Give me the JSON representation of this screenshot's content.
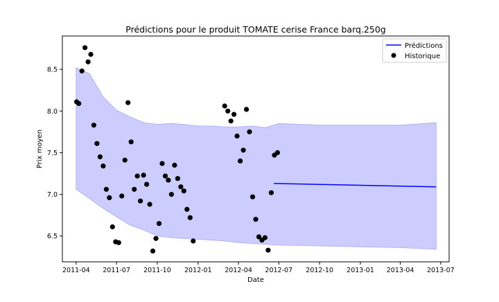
{
  "chart_data": {
    "type": "line",
    "title": "Prédictions pour le produit TOMATE cerise France barq.250g",
    "xlabel": "Date",
    "ylabel": "Prix moyen",
    "xlim": [
      "2011-03-01",
      "2013-07-20"
    ],
    "ylim": [
      6.19,
      8.9
    ],
    "x_ticks": [
      "2011-04",
      "2011-07",
      "2011-10",
      "2012-01",
      "2012-04",
      "2012-07",
      "2012-10",
      "2013-01",
      "2013-04",
      "2013-07"
    ],
    "y_ticks": [
      6.5,
      7.0,
      7.5,
      8.0,
      8.5
    ],
    "legend": {
      "position": "top-right",
      "entries": [
        "Prédictions",
        "Historique"
      ]
    },
    "colors": {
      "prediction": "#0000ff",
      "band_fill": "#ccccff",
      "band_edge": "#aaaaee",
      "history": "#000000"
    },
    "series": [
      {
        "name": "Prédictions",
        "kind": "line",
        "x": [
          "2012-06-20",
          "2013-06-21"
        ],
        "y": [
          7.13,
          7.09
        ]
      },
      {
        "name": "Historique",
        "kind": "scatter",
        "points": [
          [
            "2011-04-02",
            8.11
          ],
          [
            "2011-04-07",
            8.09
          ],
          [
            "2011-04-14",
            8.48
          ],
          [
            "2011-04-21",
            8.76
          ],
          [
            "2011-04-28",
            8.59
          ],
          [
            "2011-05-04",
            8.68
          ],
          [
            "2011-05-11",
            7.83
          ],
          [
            "2011-05-18",
            7.61
          ],
          [
            "2011-05-25",
            7.45
          ],
          [
            "2011-06-01",
            7.34
          ],
          [
            "2011-06-08",
            7.06
          ],
          [
            "2011-06-15",
            6.96
          ],
          [
            "2011-06-22",
            6.61
          ],
          [
            "2011-06-29",
            6.43
          ],
          [
            "2011-07-06",
            6.42
          ],
          [
            "2011-07-13",
            6.98
          ],
          [
            "2011-07-20",
            7.41
          ],
          [
            "2011-07-27",
            8.1
          ],
          [
            "2011-08-03",
            7.63
          ],
          [
            "2011-08-10",
            7.06
          ],
          [
            "2011-08-17",
            7.22
          ],
          [
            "2011-08-24",
            6.92
          ],
          [
            "2011-08-31",
            7.23
          ],
          [
            "2011-09-07",
            7.12
          ],
          [
            "2011-09-14",
            6.88
          ],
          [
            "2011-09-21",
            6.32
          ],
          [
            "2011-09-28",
            6.47
          ],
          [
            "2011-10-05",
            6.65
          ],
          [
            "2011-10-12",
            7.37
          ],
          [
            "2011-10-19",
            7.22
          ],
          [
            "2011-10-26",
            7.17
          ],
          [
            "2011-11-02",
            7.0
          ],
          [
            "2011-11-09",
            7.35
          ],
          [
            "2011-11-16",
            7.19
          ],
          [
            "2011-11-23",
            7.09
          ],
          [
            "2011-11-30",
            7.04
          ],
          [
            "2011-12-07",
            6.82
          ],
          [
            "2011-12-14",
            6.72
          ],
          [
            "2011-12-21",
            6.44
          ],
          [
            "2012-03-01",
            8.06
          ],
          [
            "2012-03-08",
            8.0
          ],
          [
            "2012-03-15",
            7.88
          ],
          [
            "2012-03-22",
            7.96
          ],
          [
            "2012-03-29",
            7.7
          ],
          [
            "2012-04-05",
            7.4
          ],
          [
            "2012-04-12",
            7.53
          ],
          [
            "2012-04-19",
            8.02
          ],
          [
            "2012-04-26",
            7.75
          ],
          [
            "2012-05-03",
            6.97
          ],
          [
            "2012-05-10",
            6.7
          ],
          [
            "2012-05-17",
            6.49
          ],
          [
            "2012-05-24",
            6.45
          ],
          [
            "2012-05-31",
            6.48
          ],
          [
            "2012-06-07",
            6.33
          ],
          [
            "2012-06-14",
            7.02
          ],
          [
            "2012-06-21",
            7.47
          ],
          [
            "2012-06-28",
            7.5
          ]
        ]
      }
    ],
    "uncertainty_band": {
      "x": [
        "2011-04-01",
        "2011-05-01",
        "2011-06-01",
        "2011-07-01",
        "2011-08-01",
        "2011-09-01",
        "2011-10-01",
        "2011-11-01",
        "2011-12-01",
        "2012-01-01",
        "2012-02-01",
        "2012-03-01",
        "2012-04-01",
        "2012-05-01",
        "2012-06-01",
        "2012-07-01",
        "2012-10-01",
        "2013-01-01",
        "2013-04-01",
        "2013-06-21"
      ],
      "upper": [
        8.52,
        8.45,
        8.17,
        8.01,
        7.93,
        7.86,
        7.84,
        7.85,
        7.84,
        7.82,
        7.82,
        7.81,
        7.81,
        7.82,
        7.8,
        7.85,
        7.83,
        7.83,
        7.83,
        7.86
      ],
      "lower": [
        7.06,
        6.95,
        6.83,
        6.73,
        6.63,
        6.57,
        6.5,
        6.48,
        6.47,
        6.46,
        6.45,
        6.44,
        6.42,
        6.41,
        6.4,
        6.39,
        6.38,
        6.37,
        6.36,
        6.34
      ]
    }
  }
}
